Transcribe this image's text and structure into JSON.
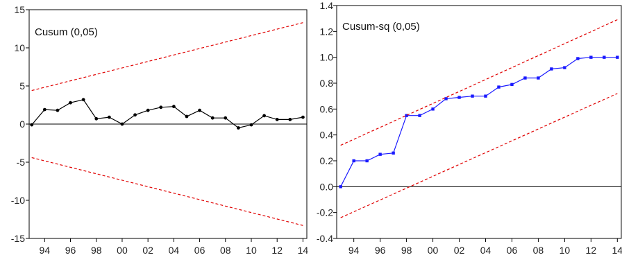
{
  "chart_data": [
    {
      "type": "line",
      "title": "Cusum (0,05)",
      "xlabel": "",
      "ylabel": "",
      "xlim": [
        1992.8,
        2014.3
      ],
      "ylim": [
        -15,
        15
      ],
      "y_ticks": [
        15,
        10,
        5,
        0,
        -5,
        -10,
        -15
      ],
      "y_tick_labels": [
        "15",
        "10",
        "5",
        "0",
        "-5",
        "-10",
        "-15"
      ],
      "x_ticks": [
        1994,
        1996,
        1998,
        2000,
        2002,
        2004,
        2006,
        2008,
        2010,
        2012,
        2014
      ],
      "x_tick_labels": [
        "94",
        "96",
        "98",
        "00",
        "02",
        "04",
        "06",
        "08",
        "10",
        "12",
        "14"
      ],
      "zero_line": 0,
      "series": [
        {
          "color": "#000000",
          "style": "solid-markers",
          "x": [
            1993,
            1994,
            1995,
            1996,
            1997,
            1998,
            1999,
            2000,
            2001,
            2002,
            2003,
            2004,
            2005,
            2006,
            2007,
            2008,
            2009,
            2010,
            2011,
            2012,
            2013,
            2014
          ],
          "y": [
            -0.1,
            1.9,
            1.8,
            2.8,
            3.2,
            0.7,
            0.9,
            0.0,
            1.2,
            1.8,
            2.2,
            2.3,
            1.0,
            1.8,
            0.8,
            0.8,
            -0.5,
            -0.1,
            1.1,
            0.6,
            0.6,
            0.9
          ]
        },
        {
          "color": "#e00000",
          "style": "dashed",
          "x": [
            1993,
            2014
          ],
          "y": [
            4.4,
            13.3
          ]
        },
        {
          "color": "#e00000",
          "style": "dashed",
          "x": [
            1993,
            2014
          ],
          "y": [
            -4.4,
            -13.3
          ]
        }
      ]
    },
    {
      "type": "line",
      "title": "Cusum-sq (0,05)",
      "xlabel": "",
      "ylabel": "",
      "xlim": [
        1992.7,
        2014.3
      ],
      "ylim": [
        -0.4,
        1.4
      ],
      "y_ticks": [
        1.4,
        1.2,
        1.0,
        0.8,
        0.6,
        0.4,
        0.2,
        0.0,
        -0.2,
        -0.4
      ],
      "y_tick_labels": [
        "1.4",
        "1.2",
        "1.0",
        "0.8",
        "0.6",
        "0.4",
        "0.2",
        "0.0",
        "-0.2",
        "-0.4"
      ],
      "x_ticks": [
        1994,
        1996,
        1998,
        2000,
        2002,
        2004,
        2006,
        2008,
        2010,
        2012,
        2014
      ],
      "x_tick_labels": [
        "94",
        "96",
        "98",
        "00",
        "02",
        "04",
        "06",
        "08",
        "10",
        "12",
        "14"
      ],
      "zero_line": 0,
      "series": [
        {
          "color": "#1a1aff",
          "style": "solid-markers",
          "x": [
            1993,
            1994,
            1995,
            1996,
            1997,
            1998,
            1999,
            2000,
            2001,
            2002,
            2003,
            2004,
            2005,
            2006,
            2007,
            2008,
            2009,
            2010,
            2011,
            2012,
            2013,
            2014
          ],
          "y": [
            0.0,
            0.2,
            0.2,
            0.25,
            0.26,
            0.55,
            0.55,
            0.6,
            0.68,
            0.69,
            0.7,
            0.7,
            0.77,
            0.79,
            0.84,
            0.84,
            0.91,
            0.92,
            0.99,
            1.0,
            1.0,
            1.0
          ]
        },
        {
          "color": "#e00000",
          "style": "dashed",
          "x": [
            1993,
            2014
          ],
          "y": [
            0.32,
            1.29
          ]
        },
        {
          "color": "#e00000",
          "style": "dashed",
          "x": [
            1993,
            2014
          ],
          "y": [
            -0.24,
            0.72
          ]
        }
      ]
    }
  ]
}
